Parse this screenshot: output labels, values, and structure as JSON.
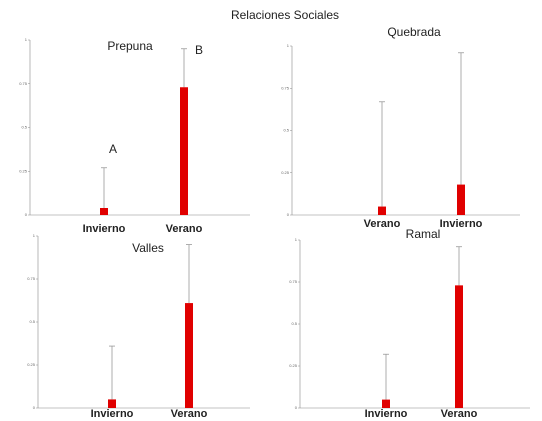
{
  "title": "Relaciones Sociales",
  "chart_data": [
    {
      "type": "bar",
      "title": "Prepuna",
      "categories": [
        "Invierno",
        "Verano"
      ],
      "values": [
        0.04,
        0.73
      ],
      "errors": [
        0.23,
        0.22
      ],
      "annotations": [
        "A",
        "B"
      ],
      "color": "#e00000",
      "ylim": [
        0,
        1
      ],
      "yticks": [
        0,
        0.25,
        0.5,
        0.75,
        1
      ]
    },
    {
      "type": "bar",
      "title": "Quebrada",
      "categories": [
        "Verano",
        "Invierno"
      ],
      "values": [
        0.05,
        0.18
      ],
      "errors": [
        0.62,
        0.78
      ],
      "color": "#e00000",
      "ylim": [
        0,
        1
      ],
      "yticks": [
        0,
        0.25,
        0.5,
        0.75,
        1
      ]
    },
    {
      "type": "bar",
      "title": "Valles",
      "categories": [
        "Invierno",
        "Verano"
      ],
      "values": [
        0.05,
        0.61
      ],
      "errors": [
        0.31,
        0.34
      ],
      "color": "#e00000",
      "ylim": [
        0,
        1
      ],
      "yticks": [
        0,
        0.25,
        0.5,
        0.75,
        1
      ]
    },
    {
      "type": "bar",
      "title": "Ramal",
      "categories": [
        "Invierno",
        "Verano"
      ],
      "values": [
        0.05,
        0.73
      ],
      "errors": [
        0.27,
        0.23
      ],
      "color": "#e00000",
      "ylim": [
        0,
        1
      ],
      "yticks": [
        0,
        0.25,
        0.5,
        0.75,
        1
      ]
    }
  ]
}
